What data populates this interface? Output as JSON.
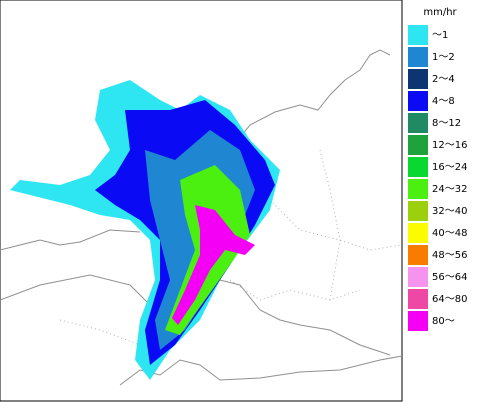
{
  "legend": {
    "unit": "mm/hr",
    "items": [
      {
        "label": "～1",
        "color": "#2ee6f2"
      },
      {
        "label": "1～2",
        "color": "#1f86d2"
      },
      {
        "label": "2～4",
        "color": "#0c3572"
      },
      {
        "label": "4～8",
        "color": "#0a0af5"
      },
      {
        "label": "8～12",
        "color": "#1f8a64"
      },
      {
        "label": "12～16",
        "color": "#1ea23c"
      },
      {
        "label": "16～24",
        "color": "#08d830"
      },
      {
        "label": "24～32",
        "color": "#4cf010"
      },
      {
        "label": "32～40",
        "color": "#9cd00c"
      },
      {
        "label": "40～48",
        "color": "#fcfc00"
      },
      {
        "label": "48～56",
        "color": "#f87c00"
      },
      {
        "label": "56～64",
        "color": "#f494ee"
      },
      {
        "label": "64～80",
        "color": "#ee48a4"
      },
      {
        "label": "80～",
        "color": "#f400f4"
      }
    ]
  }
}
